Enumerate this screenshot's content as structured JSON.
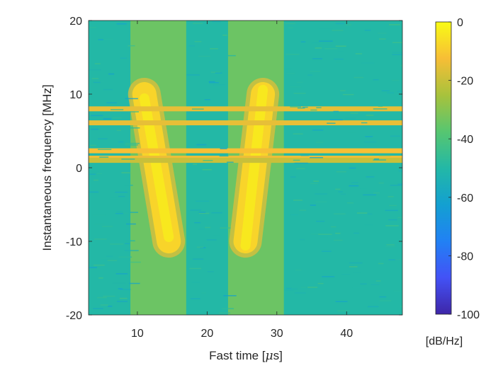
{
  "chart_data": {
    "type": "heatmap",
    "title": "",
    "xlabel_text": "Fast time [",
    "xlabel_unit": "μ",
    "xlabel_tail": "s]",
    "ylabel": "Instantaneous frequency [MHz]",
    "xlim": [
      3,
      48
    ],
    "ylim": [
      -20,
      20
    ],
    "x_ticks": [
      10,
      20,
      30,
      40
    ],
    "y_ticks": [
      -20,
      -10,
      0,
      10,
      20
    ],
    "colorbar": {
      "label": "[dB/Hz]",
      "range": [
        -100,
        0
      ],
      "ticks": [
        0,
        -20,
        -40,
        -60,
        -80,
        -100
      ],
      "colormap": "parula"
    },
    "background_level_db": -50,
    "tones": [
      {
        "freq_mhz": 8.0,
        "level_db": -15
      },
      {
        "freq_mhz": 6.1,
        "level_db": -15
      },
      {
        "freq_mhz": 2.3,
        "level_db": -12
      },
      {
        "freq_mhz": 1.3,
        "level_db": -14
      },
      {
        "freq_mhz": 1.0,
        "level_db": -20
      }
    ],
    "chirps": [
      {
        "name": "down-chirp",
        "t_start_us": 11,
        "f_start_mhz": 10,
        "t_end_us": 14.5,
        "f_end_mhz": -10,
        "level_db": -8
      },
      {
        "name": "up-chirp",
        "t_start_us": 25.5,
        "f_start_mhz": -10,
        "t_end_us": 28,
        "f_end_mhz": 10,
        "level_db": -8
      }
    ],
    "pulse_windows_us": [
      [
        9,
        17
      ],
      [
        23,
        31
      ]
    ]
  }
}
